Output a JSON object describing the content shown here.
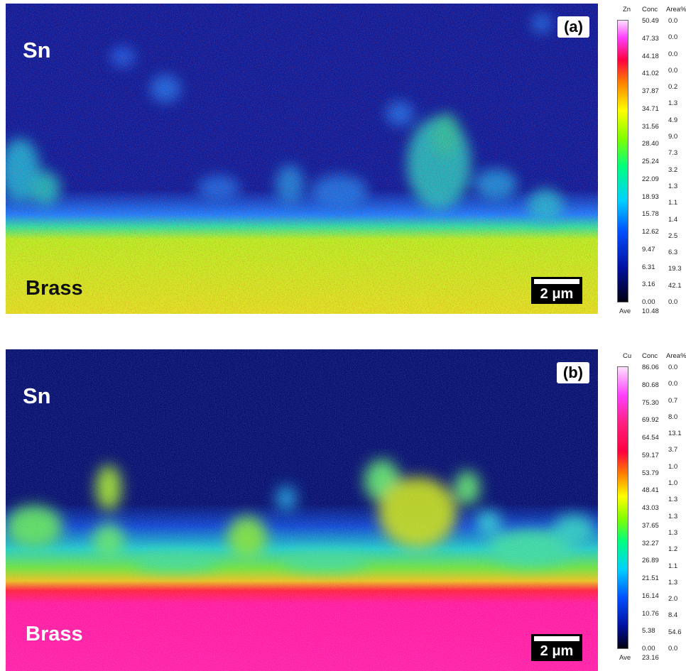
{
  "panels": [
    {
      "id": "a",
      "tag": "(a)",
      "top_label": "Sn",
      "bottom_label": "Brass",
      "scale_bar": "2 μm",
      "colorbar": {
        "element": "Zn",
        "conc_header": "Conc",
        "area_header": "Area%",
        "conc_values": [
          "50.49",
          "47.33",
          "44.18",
          "41.02",
          "37.87",
          "34.71",
          "31.56",
          "28.40",
          "25.24",
          "22.09",
          "18.93",
          "15.78",
          "12.62",
          "9.47",
          "6.31",
          "3.16",
          "0.00"
        ],
        "area_values": [
          "0.0",
          "0.0",
          "0.0",
          "0.0",
          "0.2",
          "1.3",
          "4.9",
          "9.0",
          "7.3",
          "3.2",
          "1.3",
          "1.1",
          "1.4",
          "2.5",
          "6.3",
          "19.3",
          "42.1",
          "0.0"
        ],
        "ave_label": "Ave",
        "ave_value": "10.48"
      }
    },
    {
      "id": "b",
      "tag": "(b)",
      "top_label": "Sn",
      "bottom_label": "Brass",
      "scale_bar": "2 μm",
      "colorbar": {
        "element": "Cu",
        "conc_header": "Conc",
        "area_header": "Area%",
        "conc_values": [
          "86.06",
          "80.68",
          "75.30",
          "69.92",
          "64.54",
          "59.17",
          "53.79",
          "48.41",
          "43.03",
          "37.65",
          "32.27",
          "26.89",
          "21.51",
          "16.14",
          "10.76",
          "5.38",
          "0.00"
        ],
        "area_values": [
          "0.0",
          "0.0",
          "0.7",
          "8.0",
          "13.1",
          "3.7",
          "1.0",
          "1.0",
          "1.3",
          "1.3",
          "1.3",
          "1.2",
          "1.1",
          "1.3",
          "2.0",
          "8.4",
          "54.6",
          "0.0"
        ],
        "ave_label": "Ave",
        "ave_value": "23.16"
      }
    }
  ]
}
